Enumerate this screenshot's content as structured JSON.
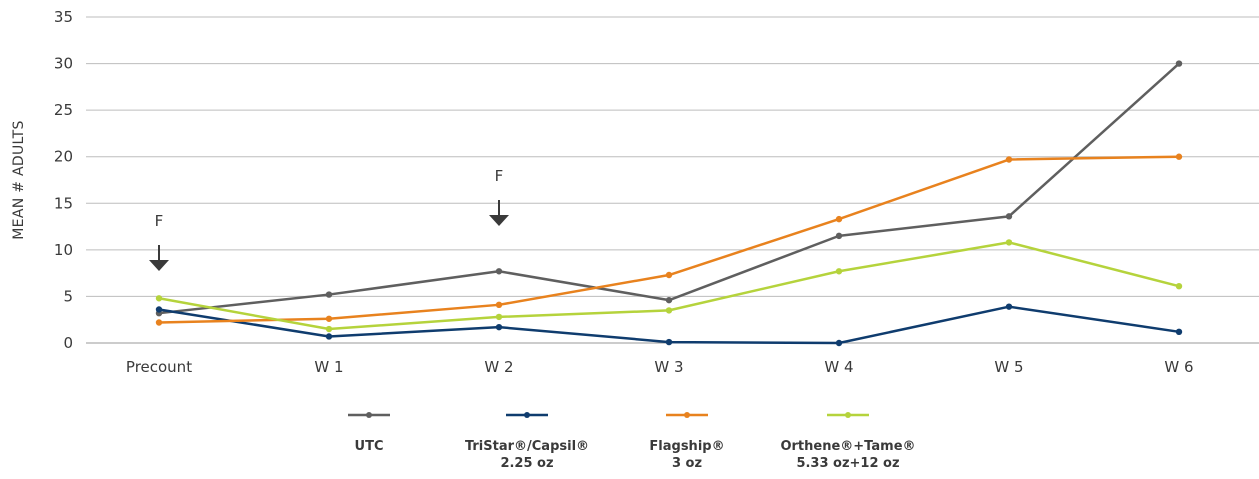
{
  "chart_data": {
    "type": "line",
    "title": "",
    "xlabel": "",
    "ylabel": "MEAN # ADULTS",
    "categories": [
      "Precount",
      "W 1",
      "W 2",
      "W 3",
      "W 4",
      "W 5",
      "W 6"
    ],
    "ylim": [
      0,
      35
    ],
    "yticks": [
      0,
      5,
      10,
      15,
      20,
      25,
      30,
      35
    ],
    "grid": "horizontal",
    "legend_position": "bottom",
    "series": [
      {
        "name": "UTC",
        "name_lines": [
          "UTC"
        ],
        "color": "#5f5f5f",
        "values": [
          3.2,
          5.2,
          7.7,
          4.6,
          11.5,
          13.6,
          30.0
        ]
      },
      {
        "name": "TriStar®/Capsil® 2.25 oz",
        "name_lines": [
          "TriStar®/Capsil®",
          "2.25 oz"
        ],
        "color": "#0f3c6e",
        "values": [
          3.6,
          0.7,
          1.7,
          0.1,
          0.0,
          3.9,
          1.2
        ]
      },
      {
        "name": "Flagship® 3 oz",
        "name_lines": [
          "Flagship®",
          "3 oz"
        ],
        "color": "#e8821e",
        "values": [
          2.2,
          2.6,
          4.1,
          7.3,
          13.3,
          19.7,
          20.0
        ]
      },
      {
        "name": "Orthene®+Tame® 5.33 oz+12 oz",
        "name_lines": [
          "Orthene®+Tame®",
          "5.33 oz+12 oz"
        ],
        "color": "#b5d33c",
        "values": [
          4.8,
          1.5,
          2.8,
          3.5,
          7.7,
          10.8,
          6.1
        ]
      }
    ],
    "annotations": [
      {
        "text": "F",
        "category": "Precount",
        "arrow": "down"
      },
      {
        "text": "F",
        "category": "W 2",
        "arrow": "down"
      }
    ]
  }
}
